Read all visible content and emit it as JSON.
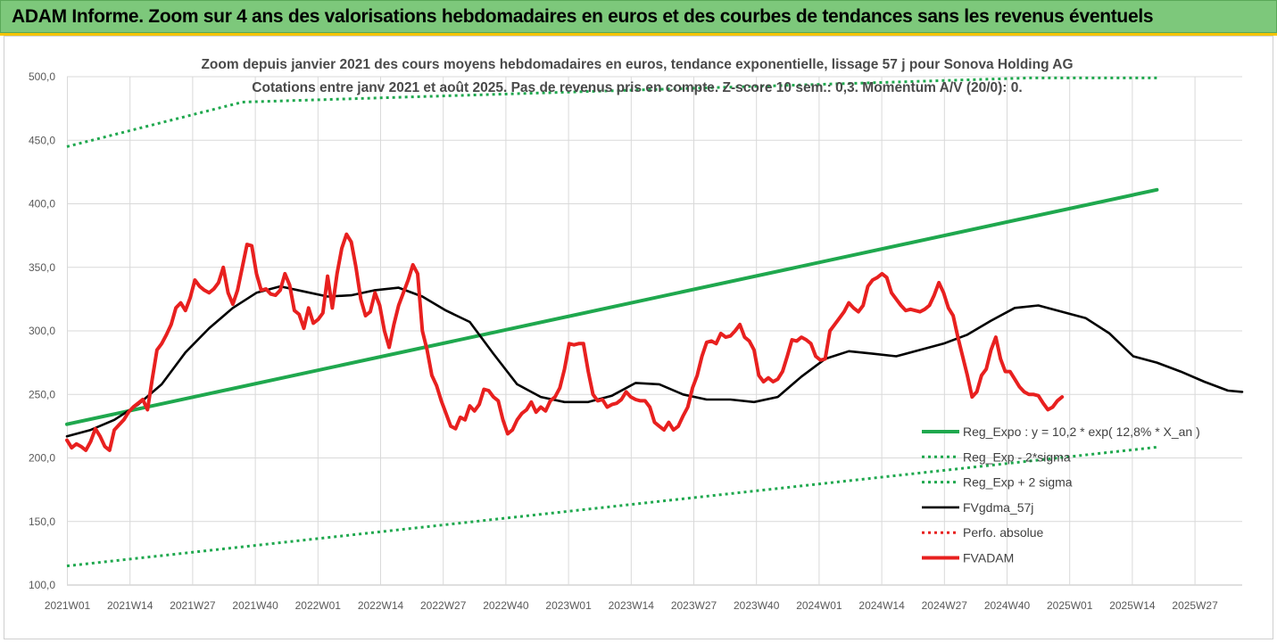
{
  "header": {
    "title": "ADAM Informe. Zoom sur 4 ans des valorisations hebdomadaires en euros et des courbes de tendances sans les revenus éventuels"
  },
  "chart_data": {
    "type": "line",
    "title": "Zoom depuis janvier 2021 des cours moyens hebdomadaires en euros, tendance exponentielle, lissage 57 j pour Sonova Holding AG",
    "subtitle": "Cotations entre janv 2021 et août 2025.  Pas de revenus pris en compte. Z-score 10 sem.: 0,3. Momentum A/V (20/0): 0.",
    "ylim": [
      100,
      500
    ],
    "yticks": [
      "100,0",
      "150,0",
      "200,0",
      "250,0",
      "300,0",
      "350,0",
      "400,0",
      "450,0",
      "500,0"
    ],
    "xticks": [
      "2021W01",
      "2021W14",
      "2021W27",
      "2021W40",
      "2022W01",
      "2022W14",
      "2022W27",
      "2022W40",
      "2023W01",
      "2023W14",
      "2023W27",
      "2023W40",
      "2024W01",
      "2024W14",
      "2024W27",
      "2024W40",
      "2025W01",
      "2025W14",
      "2025W27"
    ],
    "gridlines": true,
    "legend_position": "right",
    "colors": {
      "reg": "#1fa84e",
      "fv": "#000000",
      "adam": "#e8201f",
      "perfo": "#e8201f"
    },
    "series": [
      {
        "name": "Reg_Expo : y = 10,2 * exp( 12,8% *  X_an )",
        "style": "solid-thick",
        "color": "#1fa84e",
        "values": [
          [
            0,
            226.5
          ],
          [
            230,
            411
          ]
        ]
      },
      {
        "name": "Reg_Exp - 2*sigma",
        "style": "dotted",
        "color": "#1fa84e",
        "values": [
          [
            0,
            115
          ],
          [
            230,
            208.5
          ]
        ]
      },
      {
        "name": "Reg_Exp + 2 sigma",
        "style": "dotted",
        "color": "#1fa84e",
        "values": [
          [
            0,
            445
          ],
          [
            37,
            480
          ],
          [
            203,
            499
          ],
          [
            230,
            499
          ]
        ]
      },
      {
        "name": "FVgdma_57j",
        "style": "solid",
        "color": "#000000",
        "values": [
          [
            0,
            217
          ],
          [
            5,
            222
          ],
          [
            10,
            230
          ],
          [
            15,
            242
          ],
          [
            20,
            258
          ],
          [
            25,
            283
          ],
          [
            30,
            302
          ],
          [
            35,
            318
          ],
          [
            40,
            330
          ],
          [
            45,
            335
          ],
          [
            50,
            331
          ],
          [
            55,
            327
          ],
          [
            60,
            328
          ],
          [
            65,
            332
          ],
          [
            70,
            334
          ],
          [
            75,
            327
          ],
          [
            80,
            316
          ],
          [
            85,
            307
          ],
          [
            90,
            282
          ],
          [
            95,
            258
          ],
          [
            100,
            248
          ],
          [
            105,
            244
          ],
          [
            110,
            244
          ],
          [
            115,
            249
          ],
          [
            120,
            259
          ],
          [
            125,
            258
          ],
          [
            130,
            250
          ],
          [
            135,
            246
          ],
          [
            140,
            246
          ],
          [
            145,
            244
          ],
          [
            150,
            248
          ],
          [
            155,
            264
          ],
          [
            160,
            278
          ],
          [
            165,
            284
          ],
          [
            170,
            282
          ],
          [
            175,
            280
          ],
          [
            180,
            285
          ],
          [
            185,
            290
          ],
          [
            190,
            297
          ],
          [
            195,
            308
          ],
          [
            200,
            318
          ],
          [
            205,
            320
          ],
          [
            210,
            315
          ],
          [
            215,
            310
          ],
          [
            220,
            298
          ],
          [
            225,
            280
          ],
          [
            230,
            275
          ],
          [
            235,
            268
          ],
          [
            240,
            260
          ],
          [
            245,
            253
          ],
          [
            248,
            252
          ]
        ]
      },
      {
        "name": "Perfo. absolue",
        "style": "dotted",
        "color": "#e8201f",
        "values": []
      },
      {
        "name": "FVADAM",
        "style": "solid-thick",
        "color": "#e8201f",
        "values": [
          [
            0,
            214
          ],
          [
            1,
            208
          ],
          [
            2,
            211
          ],
          [
            3,
            209
          ],
          [
            4,
            206
          ],
          [
            5,
            213
          ],
          [
            6,
            223
          ],
          [
            7,
            217
          ],
          [
            8,
            209
          ],
          [
            9,
            206
          ],
          [
            10,
            222
          ],
          [
            11,
            226
          ],
          [
            12,
            230
          ],
          [
            13,
            236
          ],
          [
            14,
            240
          ],
          [
            15,
            243
          ],
          [
            16,
            246
          ],
          [
            17,
            238
          ],
          [
            18,
            262
          ],
          [
            19,
            285
          ],
          [
            20,
            290
          ],
          [
            21,
            297
          ],
          [
            22,
            305
          ],
          [
            23,
            318
          ],
          [
            24,
            322
          ],
          [
            25,
            316
          ],
          [
            26,
            326
          ],
          [
            27,
            340
          ],
          [
            28,
            335
          ],
          [
            29,
            332
          ],
          [
            30,
            330
          ],
          [
            31,
            333
          ],
          [
            32,
            338
          ],
          [
            33,
            350
          ],
          [
            34,
            330
          ],
          [
            35,
            321
          ],
          [
            36,
            332
          ],
          [
            37,
            350
          ],
          [
            38,
            368
          ],
          [
            39,
            367
          ],
          [
            40,
            345
          ],
          [
            41,
            332
          ],
          [
            42,
            333
          ],
          [
            43,
            329
          ],
          [
            44,
            328
          ],
          [
            45,
            332
          ],
          [
            46,
            345
          ],
          [
            47,
            336
          ],
          [
            48,
            316
          ],
          [
            49,
            313
          ],
          [
            50,
            302
          ],
          [
            51,
            318
          ],
          [
            52,
            306
          ],
          [
            53,
            309
          ],
          [
            54,
            314
          ],
          [
            55,
            343
          ],
          [
            56,
            318
          ],
          [
            57,
            345
          ],
          [
            58,
            365
          ],
          [
            59,
            376
          ],
          [
            60,
            370
          ],
          [
            61,
            350
          ],
          [
            62,
            325
          ],
          [
            63,
            312
          ],
          [
            64,
            315
          ],
          [
            65,
            330
          ],
          [
            66,
            320
          ],
          [
            67,
            300
          ],
          [
            68,
            287
          ],
          [
            69,
            305
          ],
          [
            70,
            320
          ],
          [
            71,
            330
          ],
          [
            72,
            340
          ],
          [
            73,
            352
          ],
          [
            74,
            345
          ],
          [
            75,
            300
          ],
          [
            76,
            285
          ],
          [
            77,
            265
          ],
          [
            78,
            257
          ],
          [
            79,
            245
          ],
          [
            80,
            235
          ],
          [
            81,
            225
          ],
          [
            82,
            223
          ],
          [
            83,
            232
          ],
          [
            84,
            230
          ],
          [
            85,
            241
          ],
          [
            86,
            237
          ],
          [
            87,
            242
          ],
          [
            88,
            254
          ],
          [
            89,
            253
          ],
          [
            90,
            248
          ],
          [
            91,
            245
          ],
          [
            92,
            230
          ],
          [
            93,
            219
          ],
          [
            94,
            222
          ],
          [
            95,
            230
          ],
          [
            96,
            235
          ],
          [
            97,
            238
          ],
          [
            98,
            244
          ],
          [
            99,
            236
          ],
          [
            100,
            240
          ],
          [
            101,
            237
          ],
          [
            102,
            245
          ],
          [
            103,
            248
          ],
          [
            104,
            255
          ],
          [
            105,
            270
          ],
          [
            106,
            290
          ],
          [
            107,
            289
          ],
          [
            108,
            290
          ],
          [
            109,
            290
          ],
          [
            110,
            268
          ],
          [
            111,
            250
          ],
          [
            112,
            245
          ],
          [
            113,
            246
          ],
          [
            114,
            240
          ],
          [
            115,
            242
          ],
          [
            116,
            243
          ],
          [
            117,
            246
          ],
          [
            118,
            252
          ],
          [
            119,
            248
          ],
          [
            120,
            246
          ],
          [
            121,
            245
          ],
          [
            122,
            245
          ],
          [
            123,
            240
          ],
          [
            124,
            228
          ],
          [
            125,
            225
          ],
          [
            126,
            222
          ],
          [
            127,
            228
          ],
          [
            128,
            222
          ],
          [
            129,
            225
          ],
          [
            130,
            233
          ],
          [
            131,
            240
          ],
          [
            132,
            255
          ],
          [
            133,
            265
          ],
          [
            134,
            280
          ],
          [
            135,
            291
          ],
          [
            136,
            292
          ],
          [
            137,
            290
          ],
          [
            138,
            298
          ],
          [
            139,
            295
          ],
          [
            140,
            296
          ],
          [
            141,
            300
          ],
          [
            142,
            305
          ],
          [
            143,
            295
          ],
          [
            144,
            292
          ],
          [
            145,
            285
          ],
          [
            146,
            265
          ],
          [
            147,
            260
          ],
          [
            148,
            263
          ],
          [
            149,
            260
          ],
          [
            150,
            262
          ],
          [
            151,
            268
          ],
          [
            152,
            280
          ],
          [
            153,
            293
          ],
          [
            154,
            292
          ],
          [
            155,
            295
          ],
          [
            156,
            293
          ],
          [
            157,
            290
          ],
          [
            158,
            280
          ],
          [
            159,
            277
          ],
          [
            160,
            278
          ],
          [
            161,
            300
          ],
          [
            162,
            305
          ],
          [
            163,
            310
          ],
          [
            164,
            315
          ],
          [
            165,
            322
          ],
          [
            166,
            318
          ],
          [
            167,
            315
          ],
          [
            168,
            320
          ],
          [
            169,
            335
          ],
          [
            170,
            340
          ],
          [
            171,
            342
          ],
          [
            172,
            345
          ],
          [
            173,
            342
          ],
          [
            174,
            330
          ],
          [
            175,
            325
          ],
          [
            176,
            320
          ],
          [
            177,
            316
          ],
          [
            178,
            317
          ],
          [
            179,
            316
          ],
          [
            180,
            315
          ],
          [
            181,
            317
          ],
          [
            182,
            320
          ],
          [
            183,
            328
          ],
          [
            184,
            338
          ],
          [
            185,
            330
          ],
          [
            186,
            318
          ],
          [
            187,
            312
          ],
          [
            188,
            295
          ],
          [
            189,
            280
          ],
          [
            190,
            265
          ],
          [
            191,
            248
          ],
          [
            192,
            252
          ],
          [
            193,
            265
          ],
          [
            194,
            270
          ],
          [
            195,
            285
          ],
          [
            196,
            295
          ],
          [
            197,
            278
          ],
          [
            198,
            268
          ],
          [
            199,
            268
          ],
          [
            200,
            262
          ],
          [
            201,
            256
          ],
          [
            202,
            252
          ],
          [
            203,
            250
          ],
          [
            204,
            250
          ],
          [
            205,
            249
          ],
          [
            206,
            243
          ],
          [
            207,
            238
          ],
          [
            208,
            240
          ],
          [
            209,
            245
          ],
          [
            210,
            248
          ]
        ]
      }
    ]
  }
}
